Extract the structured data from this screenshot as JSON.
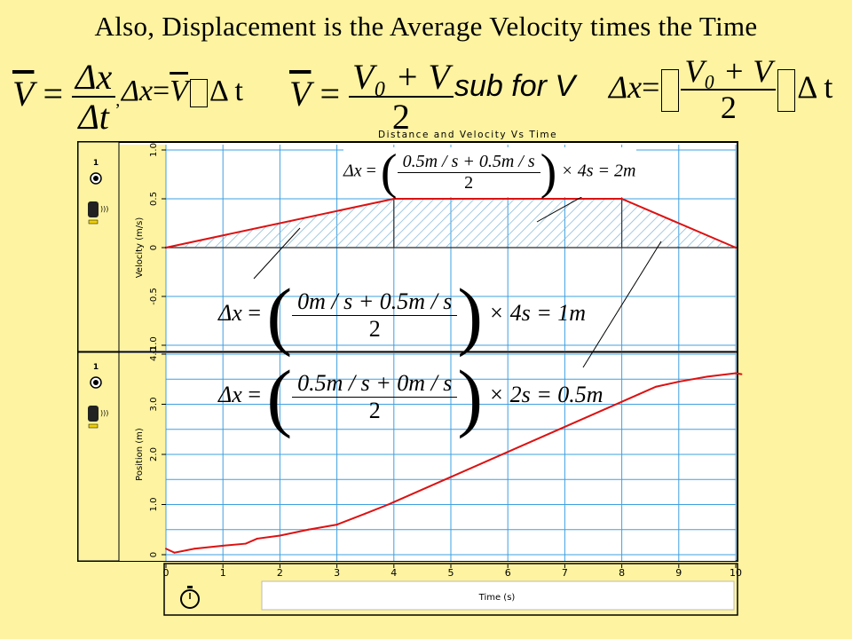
{
  "slide": {
    "title": "Also, Displacement is the Average Velocity times the Time"
  },
  "equations": {
    "eq1": {
      "lhs": "V",
      "dx": "Δx",
      "dt": "Δt",
      "sep": ","
    },
    "eq2": {
      "lhs": "Δx",
      "v": "V",
      "dt": "Δ t"
    },
    "eq3": {
      "lhs": "V",
      "num": "V₀ + V",
      "den": "2"
    },
    "eq4": {
      "text": "sub for V"
    },
    "eq5": {
      "lhs": "Δx",
      "num": "V₀ + V",
      "den": "2",
      "dt": "Δ t"
    }
  },
  "overlay_equations": {
    "middle": {
      "lhs": "Δx",
      "num": "0.5m / s + 0.5m / s",
      "den": "2",
      "rhs": "× 4s = 2m"
    },
    "left": {
      "lhs": "Δx",
      "num": "0m / s + 0.5m / s",
      "den": "2",
      "rhs": "× 4s = 1m"
    },
    "right": {
      "lhs": "Δx",
      "num": "0.5m / s + 0m / s",
      "den": "2",
      "rhs": "× 2s = 0.5m"
    }
  },
  "chart_data": [
    {
      "type": "line",
      "title": "Distance and Velocity Vs Time",
      "ylabel": "Velocity (m/s)",
      "ylim": [
        -1.0,
        1.0
      ],
      "yticks": [
        "1.0",
        "0.5",
        "0",
        "-0.5",
        "-1.0"
      ],
      "xlim": [
        0,
        10
      ],
      "grid": true,
      "series": [
        {
          "x": [
            0,
            4,
            8,
            10
          ],
          "y": [
            0,
            0.5,
            0.5,
            0
          ]
        }
      ],
      "shaded_regions": [
        {
          "x": [
            0,
            4
          ]
        },
        {
          "x": [
            4,
            8
          ]
        },
        {
          "x": [
            8,
            10
          ]
        }
      ]
    },
    {
      "type": "line",
      "ylabel": "Position (m)",
      "xlabel": "Time (s)",
      "ylim": [
        0,
        4.0
      ],
      "yticks": [
        "4.0",
        "3.0",
        "2.0",
        "1.0",
        "0"
      ],
      "xlim": [
        0,
        10
      ],
      "xticks": [
        "0",
        "1",
        "2",
        "3",
        "4",
        "5",
        "6",
        "7",
        "8",
        "9",
        "10"
      ],
      "grid": true,
      "series": [
        {
          "x": [
            0,
            0.15,
            0.5,
            1,
            1.4,
            1.6,
            2,
            2.5,
            3,
            3.5,
            3.9,
            4,
            5,
            6,
            7,
            8,
            8.3,
            8.6,
            9,
            9.5,
            10,
            10.1
          ],
          "y": [
            0.12,
            0.04,
            0.12,
            0.18,
            0.22,
            0.32,
            0.38,
            0.5,
            0.6,
            0.82,
            1.0,
            1.05,
            1.55,
            2.05,
            2.55,
            3.05,
            3.2,
            3.35,
            3.45,
            3.55,
            3.62,
            3.6
          ]
        }
      ]
    }
  ],
  "icons": {
    "probe_number": "1",
    "colors": {
      "line": "#dd1111",
      "grid": "#3ea0e0",
      "hatch": "#7fb4d6",
      "background": "#fdf3a0"
    }
  }
}
